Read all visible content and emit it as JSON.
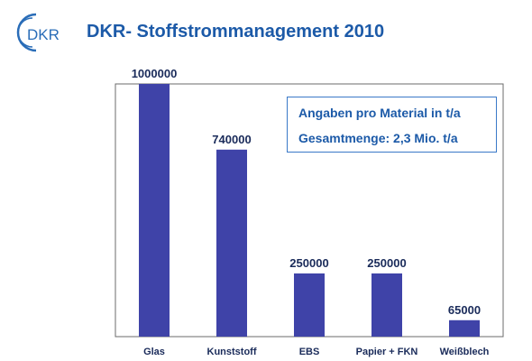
{
  "header": {
    "logo_text": "DKR",
    "title": "DKR- Stoffstrommanagement 2010"
  },
  "info_box": {
    "line1": "Angaben pro Material in t/a",
    "line2": "Gesamtmenge: 2,3 Mio. t/a"
  },
  "colors": {
    "bar": "#3f43a8",
    "title": "#1c5aa8",
    "logo": "#2a6db8",
    "axis": "#6b6b6b",
    "text": "#1a2b5a"
  },
  "chart_data": {
    "type": "bar",
    "categories": [
      "Glas",
      "Kunststoff",
      "EBS",
      "Papier + FKN",
      "Weißblech"
    ],
    "values": [
      1000000,
      740000,
      250000,
      250000,
      65000
    ],
    "value_labels": [
      "1000000",
      "740000",
      "250000",
      "250000",
      "65000"
    ],
    "title": "",
    "xlabel": "",
    "ylabel": "",
    "ylim": [
      0,
      1000000
    ],
    "grid": false,
    "legend": "none"
  }
}
